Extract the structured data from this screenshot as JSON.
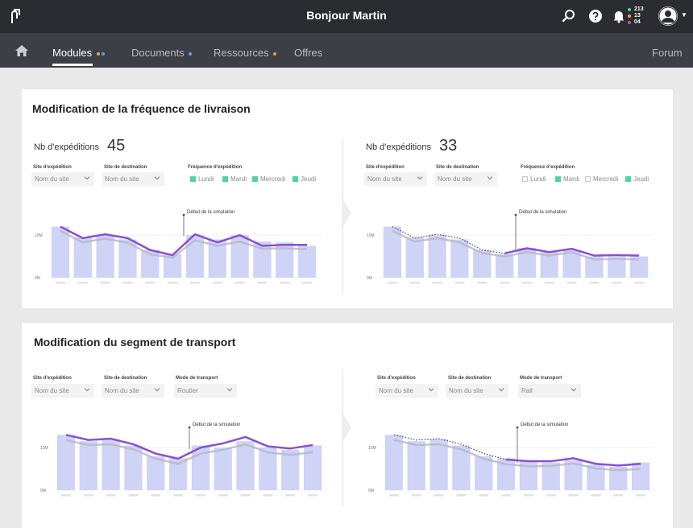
{
  "header": {
    "greeting": "Bonjour Martin"
  },
  "notifications": [
    {
      "count": "213",
      "color": "#4fd3a5"
    },
    {
      "count": "13",
      "color": "#f2a33a"
    },
    {
      "count": "04",
      "color": "#d94f8a"
    }
  ],
  "nav": {
    "items": [
      {
        "label": "Modules",
        "dots": [
          "#f2a33a",
          "#4ea3f0"
        ]
      },
      {
        "label": "Documents",
        "dots": [
          "#4ea3f0"
        ]
      },
      {
        "label": "Ressources",
        "dots": [
          "#f2a33a"
        ]
      },
      {
        "label": "Offres",
        "dots": []
      }
    ],
    "forum": "Forum"
  },
  "colors": {
    "accent": "#8a4fd6",
    "bar": "#cfd3f5",
    "check": "#4fd3a5"
  },
  "sim_label": "Début de la simulation",
  "card1": {
    "title": "Modification de la fréquence de livraison",
    "kpi_label": "Nb d'expéditions",
    "left": {
      "kpi_value": "45",
      "origin_label": "Site d'expédition",
      "origin_value": "Nom du site",
      "dest_label": "Site de destination",
      "dest_value": "Nom du site",
      "freq_label": "Fréquence d'expédition",
      "days": [
        {
          "label": "Lundi",
          "checked": true
        },
        {
          "label": "Mardi",
          "checked": true
        },
        {
          "label": "Mercredi",
          "checked": true
        },
        {
          "label": "Jeudi",
          "checked": true
        }
      ]
    },
    "right": {
      "kpi_value": "33",
      "origin_label": "Site d'expédition",
      "origin_value": "Nom du site",
      "dest_label": "Site de destination",
      "dest_value": "Nom du site",
      "freq_label": "Fréquence d'expédition",
      "days": [
        {
          "label": "Lundi",
          "checked": false
        },
        {
          "label": "Mardi",
          "checked": true
        },
        {
          "label": "Mercredi",
          "checked": false
        },
        {
          "label": "Jeudi",
          "checked": true
        }
      ]
    }
  },
  "card2": {
    "title": "Modification du segment de transport",
    "left": {
      "origin_label": "Site d'expédition",
      "origin_value": "Nom du site",
      "dest_label": "Site de destination",
      "dest_value": "Nom du site",
      "mode_label": "Mode de transport",
      "mode_value": "Routier"
    },
    "right": {
      "origin_label": "Site d'expédition",
      "origin_value": "Nom du site",
      "dest_label": "Site de destination",
      "dest_value": "Nom du site",
      "mode_label": "Mode de transport",
      "mode_value": "Rail"
    }
  },
  "chart_data": [
    {
      "id": "c1-left",
      "type": "bar",
      "title": "",
      "ylim": [
        0,
        14
      ],
      "ytick_labels": [
        "0M",
        "10M"
      ],
      "ytick_values": [
        0,
        10
      ],
      "sim_index": 5.5,
      "dotted_before_sim": false,
      "bar_values": [
        12,
        9.5,
        10,
        9,
        6.5,
        5.5,
        10,
        9,
        10,
        8.5,
        8.3,
        7.5
      ],
      "line_values": [
        12,
        9.3,
        10.2,
        9.3,
        6.5,
        5.3,
        10.2,
        8.3,
        10,
        7.5,
        7.7,
        7.7
      ],
      "shadow_values": [
        11,
        8.3,
        9.2,
        8.2,
        5.5,
        4.7,
        8.8,
        7.5,
        8.5,
        6.8,
        6.9,
        6.7
      ]
    },
    {
      "id": "c1-right",
      "type": "bar",
      "title": "",
      "ylim": [
        0,
        14
      ],
      "ytick_labels": [
        "0M",
        "10M"
      ],
      "ytick_values": [
        0,
        10
      ],
      "sim_index": 5.5,
      "dotted_before_sim": true,
      "bar_values": [
        12,
        9.5,
        10,
        9,
        6.5,
        5.5,
        7,
        6,
        6.5,
        5,
        5,
        5
      ],
      "line_values": [
        12,
        9.3,
        10.2,
        9.3,
        6.5,
        5.7,
        6.9,
        6,
        6.8,
        5.2,
        5.3,
        5.2
      ],
      "shadow_values": [
        11,
        8.5,
        9.3,
        8.3,
        5.8,
        5,
        6,
        5.2,
        6,
        4.3,
        4.4,
        4.3
      ]
    },
    {
      "id": "c2-left",
      "type": "bar",
      "title": "",
      "ylim": [
        0,
        14
      ],
      "ytick_labels": [
        "0M",
        "10M"
      ],
      "ytick_values": [
        0,
        10
      ],
      "sim_index": 5.5,
      "dotted_before_sim": false,
      "bar_values": [
        13,
        11.5,
        12,
        10.5,
        8,
        7.5,
        10.5,
        10,
        11.5,
        10,
        9.5,
        10.5
      ],
      "line_values": [
        13,
        11.8,
        12.1,
        10.8,
        8.6,
        7.4,
        10,
        11,
        12.5,
        10.3,
        9.8,
        10.6
      ],
      "shadow_values": [
        11.8,
        10.6,
        10.8,
        9.6,
        7.4,
        6.2,
        8.6,
        9.5,
        10.8,
        8.9,
        8.3,
        8.9
      ]
    },
    {
      "id": "c2-right",
      "type": "bar",
      "title": "",
      "ylim": [
        0,
        14
      ],
      "ytick_labels": [
        "0M",
        "10M"
      ],
      "ytick_values": [
        0,
        10
      ],
      "sim_index": 5.5,
      "dotted_before_sim": true,
      "bar_values": [
        13,
        11.5,
        12,
        10.5,
        8,
        7.5,
        7,
        6.5,
        7,
        6,
        5.5,
        6.5
      ],
      "line_values": [
        13,
        11.8,
        12.1,
        10.8,
        8.6,
        7.2,
        6.8,
        6.8,
        7.5,
        6.2,
        5.8,
        6.2
      ],
      "shadow_values": [
        11.8,
        10.6,
        10.8,
        9.6,
        7.4,
        6.1,
        5.6,
        5.7,
        6.3,
        5.1,
        4.7,
        5
      ]
    }
  ]
}
